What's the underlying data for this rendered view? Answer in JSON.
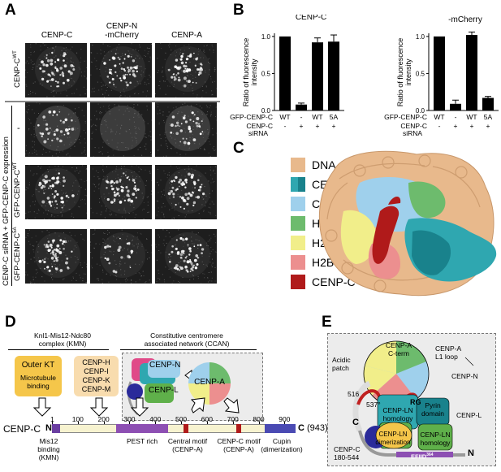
{
  "panels": {
    "a": "A",
    "b": "B",
    "c": "C",
    "d": "D",
    "e": "E"
  },
  "panelA": {
    "col_headers": [
      "CENP-C",
      "CENP-N\n-mCherry",
      "CENP-A"
    ],
    "row_label_ctrl": "CENP-C",
    "row_label_ctrl_sup": "WT",
    "row_label_dash": "-",
    "row_label_wt": "GFP-CENP-C",
    "row_label_wt_sup": "WT",
    "row_label_5a": "GFP-CENP-C",
    "row_label_5a_sup": "5A",
    "group_label": "CENP-C siRNA + GFP-CENP-C expression"
  },
  "panelB": {
    "chart_data": [
      {
        "type": "bar",
        "title": "CENP-C",
        "ylabel": "Ratio of fluorescence intensity",
        "ylim": [
          0,
          1.0
        ],
        "yticks": [
          "0.0",
          "0.5",
          "1.0"
        ],
        "categories": [
          "WT",
          "-",
          "WT",
          "5A"
        ],
        "values": [
          1.0,
          0.08,
          0.92,
          0.93
        ],
        "errors": [
          0,
          0.02,
          0.06,
          0.09
        ],
        "row1_label": "GFP-CENP-C",
        "row1": [
          "WT",
          "-",
          "WT",
          "5A"
        ],
        "row2_label": "CENP-C siRNA",
        "row2": [
          "-",
          "+",
          "+",
          "+"
        ]
      },
      {
        "type": "bar",
        "title": "CENP-N\n-mCherry",
        "ylabel": "Ratio of fluorescence intensity",
        "ylim": [
          0,
          1.0
        ],
        "yticks": [
          "0.0",
          "0.5",
          "1.0"
        ],
        "categories": [
          "WT",
          "-",
          "WT",
          "5A"
        ],
        "values": [
          1.0,
          0.09,
          1.02,
          0.17
        ],
        "errors": [
          0,
          0.05,
          0.04,
          0.02
        ],
        "row1_label": "GFP-CENP-C",
        "row1": [
          "WT",
          "-",
          "WT",
          "5A"
        ],
        "row2_label": "CENP-C siRNA",
        "row2": [
          "-",
          "+",
          "+",
          "+"
        ]
      }
    ],
    "row1_label": "GFP-CENP-C",
    "row2_label_a": "CENP-C",
    "row2_label_b": "siRNA"
  },
  "panelC": {
    "legend": [
      {
        "label": "DNA",
        "color": "#e8b98c"
      },
      {
        "label": "CENP-N",
        "color": "#2fa7b0"
      },
      {
        "label": "CENP-A",
        "color": "#9fd0ec"
      },
      {
        "label": "H4",
        "color": "#6dbb6d"
      },
      {
        "label": "H2A",
        "color": "#f1ee8a"
      },
      {
        "label": "H2B",
        "color": "#ec8f8f"
      },
      {
        "label": "CENP-C",
        "color": "#b01a1a"
      }
    ]
  },
  "panelD": {
    "kmn_title": "Knl1-Mis12-Ndc80\ncomplex (KMN)",
    "ccan_title": "Constitutive centromere\nassociated network (CCAN)",
    "outer_kt": "Outer KT",
    "microtubule": "Microtubule\nbinding",
    "ccan_list": "CENP-H\nCENP-I\nCENP-K\nCENP-M",
    "cenpn": "CENP-N",
    "cenpl": "CENP-L",
    "cenpa": "CENP-A",
    "protein": "CENP-C",
    "n_term": "N",
    "c_term": "C",
    "length": "(943)",
    "ticks": [
      "1",
      "100",
      "200",
      "300",
      "400",
      "500",
      "600",
      "700",
      "800",
      "900"
    ],
    "regions": [
      {
        "label": "Mis12\nbinding\n(KMN)"
      },
      {
        "label": "PEST rich"
      },
      {
        "label": "Central motif\n(CENP-A)"
      },
      {
        "label": "CENP-C motif\n(CENP-A)"
      },
      {
        "label": "Cupin\n(dimerization)"
      }
    ]
  },
  "panelE": {
    "cenpa_cterm": "CENP-A\nC-term",
    "cenpa_l1": "CENP-A\nL1 loop",
    "acidic": "Acidic\npatch",
    "cenpn": "CENP-N",
    "res516": "516",
    "res537": "537",
    "rg": "RG",
    "ln_homology": "CENP-LN\nhomology",
    "pyrin": "Pyrin\ndomain",
    "cenpl": "CENP-L",
    "c": "C",
    "ln_dimer": "CENP-LN\ndimerization",
    "ln_homology2": "CENP-LN\nhomology",
    "cenpc_range": "CENP-C\n180-544",
    "efiid": "EFIID",
    "efiid_sup": "364",
    "n": "N"
  }
}
